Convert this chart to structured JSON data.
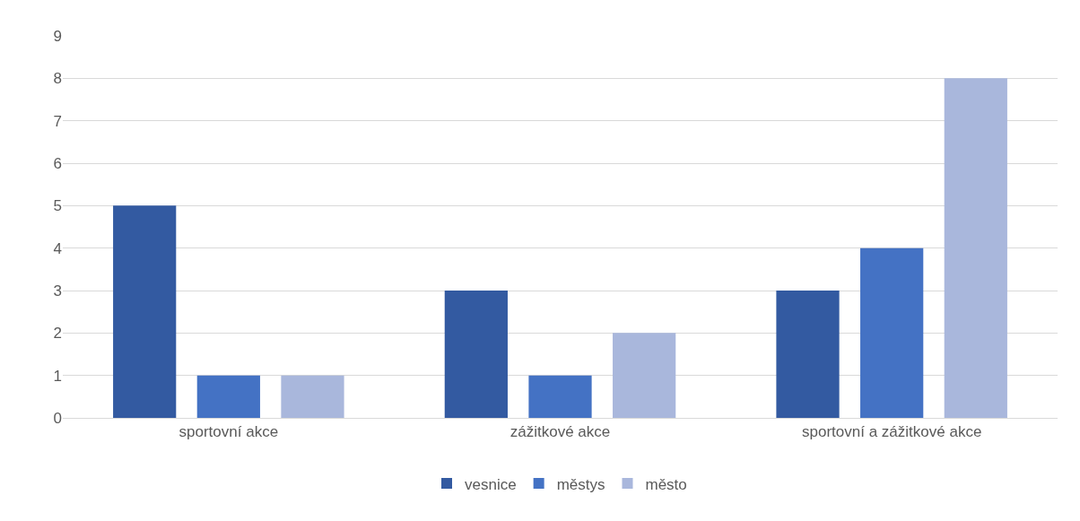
{
  "chart_data": {
    "type": "bar",
    "categories": [
      "sportovní akce",
      "zážitkové akce",
      "sportovní a zážitkové akce"
    ],
    "series": [
      {
        "name": "vesnice",
        "color": "#335aa1",
        "values": [
          5,
          3,
          3
        ]
      },
      {
        "name": "městys",
        "color": "#4472c4",
        "values": [
          1,
          1,
          4
        ]
      },
      {
        "name": "město",
        "color": "#a9b7dc",
        "values": [
          1,
          2,
          8
        ]
      }
    ],
    "ylim": [
      0,
      9
    ],
    "yticks": [
      0,
      1,
      2,
      3,
      4,
      5,
      6,
      7,
      8,
      9
    ],
    "grid": "y",
    "legend": "bottom"
  }
}
